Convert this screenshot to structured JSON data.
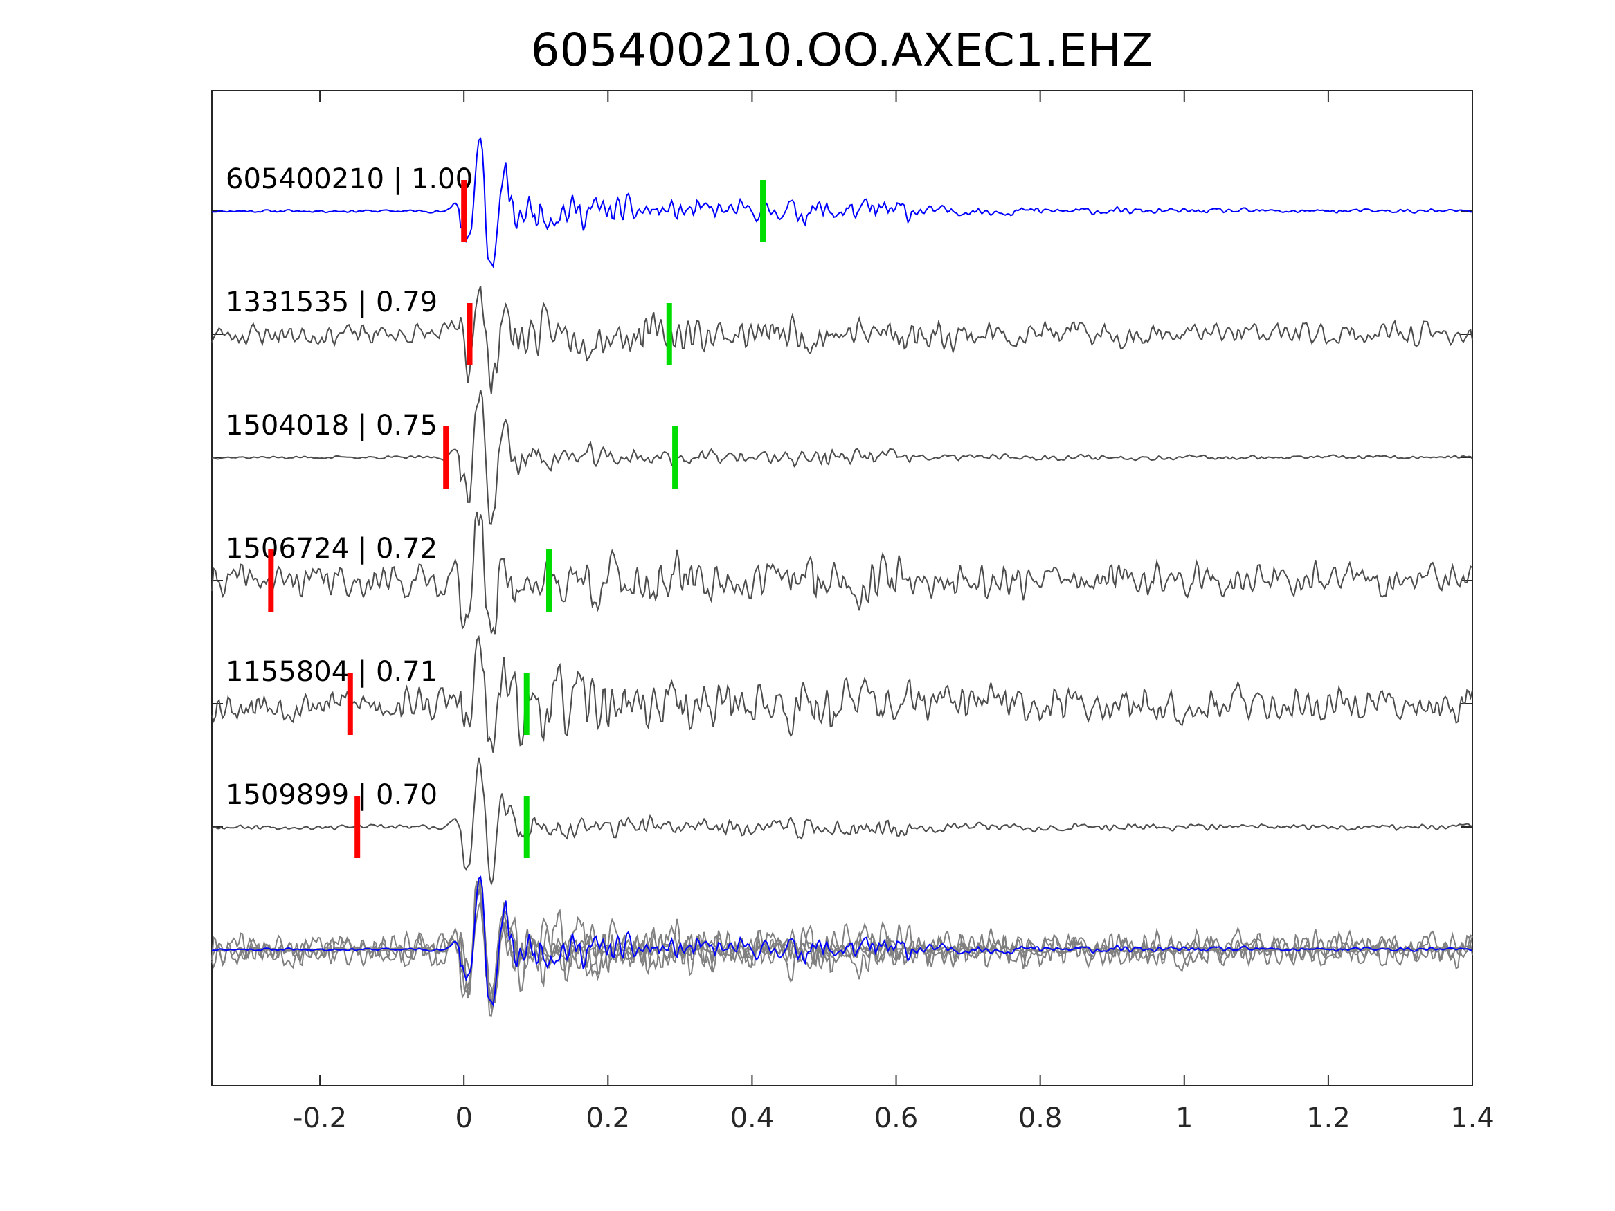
{
  "chart_data": {
    "type": "line",
    "title": "605400210.OO.AXEC1.EHZ",
    "xlabel": "",
    "ylabel": "",
    "xlim": [
      -0.35,
      1.4
    ],
    "xticks": [
      {
        "value": -0.2,
        "label": "-0.2"
      },
      {
        "value": 0,
        "label": "0"
      },
      {
        "value": 0.2,
        "label": "0.2"
      },
      {
        "value": 0.4,
        "label": "0.4"
      },
      {
        "value": 0.6,
        "label": "0.6"
      },
      {
        "value": 0.8,
        "label": "0.8"
      },
      {
        "value": 1.0,
        "label": "1"
      },
      {
        "value": 1.2,
        "label": "1.2"
      },
      {
        "value": 1.4,
        "label": "1.4"
      }
    ],
    "grid": false,
    "colors": {
      "template": "#0000ff",
      "match": "#4d4d4d",
      "stack_match": "#808080",
      "p_pick": "#ff0000",
      "s_pick": "#00dd00",
      "axes": "#262626"
    },
    "traces": [
      {
        "id": "605400210",
        "label": "605400210 | 1.00",
        "p_pick": 0.0,
        "s_pick": 0.415,
        "template": true,
        "seed": 11,
        "noise": 0.03,
        "coda": 0.5
      },
      {
        "id": "1331535",
        "label": "1331535 | 0.79",
        "p_pick": 0.008,
        "s_pick": 0.285,
        "template": false,
        "seed": 23,
        "noise": 0.24,
        "coda": 0.35
      },
      {
        "id": "1504018",
        "label": "1504018 | 0.75",
        "p_pick": -0.025,
        "s_pick": 0.293,
        "template": false,
        "seed": 37,
        "noise": 0.03,
        "coda": 0.35
      },
      {
        "id": "1506724",
        "label": "1506724 | 0.72",
        "p_pick": -0.268,
        "s_pick": 0.118,
        "template": false,
        "seed": 41,
        "noise": 0.32,
        "coda": 0.45
      },
      {
        "id": "1155804",
        "label": "1155804 | 0.71",
        "p_pick": -0.158,
        "s_pick": 0.087,
        "template": false,
        "seed": 53,
        "noise": 0.36,
        "coda": 0.5
      },
      {
        "id": "1509899",
        "label": "1509899 | 0.70",
        "p_pick": -0.148,
        "s_pick": 0.087,
        "template": false,
        "seed": 67,
        "noise": 0.05,
        "coda": 0.35
      }
    ],
    "stack": true
  }
}
